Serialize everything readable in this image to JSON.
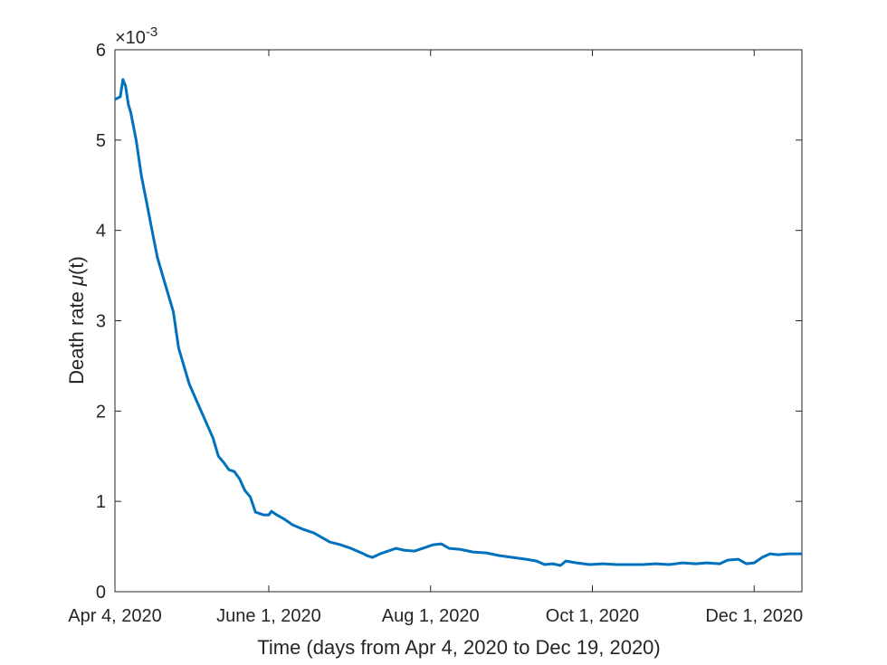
{
  "chart_data": {
    "type": "line",
    "title": "",
    "xlabel": "Time (days from Apr 4, 2020 to Dec 19, 2020)",
    "ylabel_text": "Death rate ",
    "ylabel_symbol": "μ",
    "ylabel_suffix": "(t)",
    "y_exponent_base": "×10",
    "y_exponent_power": "-3",
    "xlim": [
      "2020-04-04",
      "2020-12-19"
    ],
    "ylim": [
      0,
      0.006
    ],
    "grid": false,
    "x_ticks": [
      {
        "date": "2020-04-04",
        "label": "Apr 4, 2020"
      },
      {
        "date": "2020-06-01",
        "label": "June 1, 2020"
      },
      {
        "date": "2020-08-01",
        "label": "Aug 1, 2020"
      },
      {
        "date": "2020-10-01",
        "label": "Oct 1, 2020"
      },
      {
        "date": "2020-12-01",
        "label": "Dec 1, 2020"
      }
    ],
    "y_ticks": [
      {
        "value": 0,
        "label": "0"
      },
      {
        "value": 0.001,
        "label": "1"
      },
      {
        "value": 0.002,
        "label": "2"
      },
      {
        "value": 0.003,
        "label": "3"
      },
      {
        "value": 0.004,
        "label": "4"
      },
      {
        "value": 0.005,
        "label": "5"
      },
      {
        "value": 0.006,
        "label": "6"
      }
    ],
    "series": [
      {
        "color": "#0072BD",
        "points": [
          [
            "2020-04-04",
            0.00545
          ],
          [
            "2020-04-06",
            0.00548
          ],
          [
            "2020-04-07",
            0.00567
          ],
          [
            "2020-04-08",
            0.0056
          ],
          [
            "2020-04-09",
            0.0054
          ],
          [
            "2020-04-10",
            0.0053
          ],
          [
            "2020-04-12",
            0.005
          ],
          [
            "2020-04-14",
            0.0046
          ],
          [
            "2020-04-16",
            0.0043
          ],
          [
            "2020-04-18",
            0.004
          ],
          [
            "2020-04-20",
            0.0037
          ],
          [
            "2020-04-22",
            0.0035
          ],
          [
            "2020-04-24",
            0.0033
          ],
          [
            "2020-04-26",
            0.0031
          ],
          [
            "2020-04-28",
            0.0027
          ],
          [
            "2020-04-30",
            0.0025
          ],
          [
            "2020-05-02",
            0.0023
          ],
          [
            "2020-05-05",
            0.0021
          ],
          [
            "2020-05-08",
            0.0019
          ],
          [
            "2020-05-11",
            0.0017
          ],
          [
            "2020-05-13",
            0.0015
          ],
          [
            "2020-05-15",
            0.00143
          ],
          [
            "2020-05-17",
            0.00135
          ],
          [
            "2020-05-19",
            0.00133
          ],
          [
            "2020-05-21",
            0.00125
          ],
          [
            "2020-05-23",
            0.00112
          ],
          [
            "2020-05-25",
            0.00105
          ],
          [
            "2020-05-27",
            0.00088
          ],
          [
            "2020-05-30",
            0.00085
          ],
          [
            "2020-06-01",
            0.00085
          ],
          [
            "2020-06-02",
            0.00089
          ],
          [
            "2020-06-04",
            0.00085
          ],
          [
            "2020-06-07",
            0.0008
          ],
          [
            "2020-06-10",
            0.00074
          ],
          [
            "2020-06-14",
            0.00069
          ],
          [
            "2020-06-18",
            0.00065
          ],
          [
            "2020-06-21",
            0.0006
          ],
          [
            "2020-06-24",
            0.00055
          ],
          [
            "2020-06-28",
            0.00052
          ],
          [
            "2020-07-02",
            0.00048
          ],
          [
            "2020-07-06",
            0.00043
          ],
          [
            "2020-07-08",
            0.0004
          ],
          [
            "2020-07-10",
            0.00038
          ],
          [
            "2020-07-13",
            0.00042
          ],
          [
            "2020-07-16",
            0.00045
          ],
          [
            "2020-07-19",
            0.00048
          ],
          [
            "2020-07-22",
            0.00046
          ],
          [
            "2020-07-26",
            0.00045
          ],
          [
            "2020-07-30",
            0.00049
          ],
          [
            "2020-08-02",
            0.00052
          ],
          [
            "2020-08-05",
            0.00053
          ],
          [
            "2020-08-08",
            0.00048
          ],
          [
            "2020-08-12",
            0.00047
          ],
          [
            "2020-08-17",
            0.00044
          ],
          [
            "2020-08-22",
            0.00043
          ],
          [
            "2020-08-27",
            0.0004
          ],
          [
            "2020-09-01",
            0.00038
          ],
          [
            "2020-09-06",
            0.00036
          ],
          [
            "2020-09-10",
            0.00034
          ],
          [
            "2020-09-13",
            0.0003
          ],
          [
            "2020-09-16",
            0.00031
          ],
          [
            "2020-09-19",
            0.00029
          ],
          [
            "2020-09-21",
            0.00034
          ],
          [
            "2020-09-25",
            0.00032
          ],
          [
            "2020-09-30",
            0.0003
          ],
          [
            "2020-10-05",
            0.00031
          ],
          [
            "2020-10-10",
            0.0003
          ],
          [
            "2020-10-15",
            0.0003
          ],
          [
            "2020-10-20",
            0.0003
          ],
          [
            "2020-10-25",
            0.00031
          ],
          [
            "2020-10-30",
            0.0003
          ],
          [
            "2020-11-04",
            0.00032
          ],
          [
            "2020-11-09",
            0.00031
          ],
          [
            "2020-11-13",
            0.00032
          ],
          [
            "2020-11-18",
            0.00031
          ],
          [
            "2020-11-21",
            0.00035
          ],
          [
            "2020-11-25",
            0.00036
          ],
          [
            "2020-11-28",
            0.00031
          ],
          [
            "2020-12-01",
            0.00032
          ],
          [
            "2020-12-04",
            0.00038
          ],
          [
            "2020-12-07",
            0.00042
          ],
          [
            "2020-12-10",
            0.00041
          ],
          [
            "2020-12-14",
            0.00042
          ],
          [
            "2020-12-19",
            0.00042
          ]
        ]
      }
    ]
  }
}
